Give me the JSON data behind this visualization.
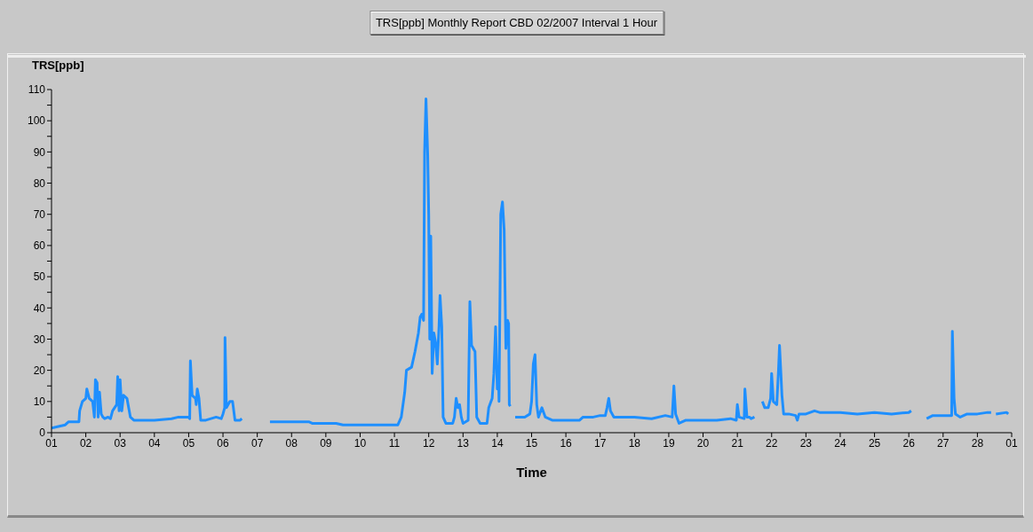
{
  "chart_data": {
    "type": "line",
    "title": "TRS[ppb] Monthly Report CBD 02/2007 Interval 1 Hour",
    "ylabel": "TRS[ppb]",
    "xlabel": "Time",
    "color": "#1e8fff",
    "marker": "none",
    "grid": false,
    "xlim": [
      "2007-02-01",
      "2007-03-01"
    ],
    "xticks": [
      {
        "value": "2007-02-01",
        "label": "01"
      },
      {
        "value": "2007-02-02",
        "label": "02"
      },
      {
        "value": "2007-02-03",
        "label": "03"
      },
      {
        "value": "2007-02-04",
        "label": "04"
      },
      {
        "value": "2007-02-05",
        "label": "05"
      },
      {
        "value": "2007-02-06",
        "label": "06"
      },
      {
        "value": "2007-02-07",
        "label": "07"
      },
      {
        "value": "2007-02-08",
        "label": "08"
      },
      {
        "value": "2007-02-09",
        "label": "09"
      },
      {
        "value": "2007-02-10",
        "label": "10"
      },
      {
        "value": "2007-02-11",
        "label": "11"
      },
      {
        "value": "2007-02-12",
        "label": "12"
      },
      {
        "value": "2007-02-13",
        "label": "13"
      },
      {
        "value": "2007-02-14",
        "label": "14"
      },
      {
        "value": "2007-02-15",
        "label": "15"
      },
      {
        "value": "2007-02-16",
        "label": "16"
      },
      {
        "value": "2007-02-17",
        "label": "17"
      },
      {
        "value": "2007-02-18",
        "label": "18"
      },
      {
        "value": "2007-02-19",
        "label": "19"
      },
      {
        "value": "2007-02-20",
        "label": "20"
      },
      {
        "value": "2007-02-21",
        "label": "21"
      },
      {
        "value": "2007-02-22",
        "label": "22"
      },
      {
        "value": "2007-02-23",
        "label": "23"
      },
      {
        "value": "2007-02-24",
        "label": "24"
      },
      {
        "value": "2007-02-25",
        "label": "25"
      },
      {
        "value": "2007-02-26",
        "label": "26"
      },
      {
        "value": "2007-02-27",
        "label": "27"
      },
      {
        "value": "2007-02-28",
        "label": "28"
      },
      {
        "value": "2007-03-01",
        "label": "01"
      }
    ],
    "ylim": [
      0,
      110
    ],
    "yticks": [
      0,
      {
        "value": 5,
        "label": null
      },
      10,
      {
        "value": 15,
        "label": null
      },
      20,
      {
        "value": 25,
        "label": null
      },
      30,
      {
        "value": 35,
        "label": null
      },
      40,
      {
        "value": 45,
        "label": null
      },
      50,
      {
        "value": 55,
        "label": null
      },
      60,
      {
        "value": 65,
        "label": null
      },
      70,
      {
        "value": 75,
        "label": null
      },
      80,
      {
        "value": 85,
        "label": null
      },
      90,
      {
        "value": 95,
        "label": null
      },
      100,
      {
        "value": 105,
        "label": null
      },
      110
    ],
    "x": [
      "2007-02-01T00:00",
      "2007-02-01T04:48",
      "2007-02-01T09:36",
      "2007-02-01T12:00",
      "2007-02-01T19:12",
      "2007-02-01T19:41",
      "2007-02-01T21:36",
      "2007-02-02T00:00",
      "2007-02-02T00:43",
      "2007-02-02T02:24",
      "2007-02-02T04:48",
      "2007-02-02T06:00",
      "2007-02-02T06:43",
      "2007-02-02T07:55",
      "2007-02-02T08:38",
      "2007-02-02T09:36",
      "2007-02-02T10:48",
      "2007-02-02T12:00",
      "2007-02-02T13:12",
      "2007-02-02T15:36",
      "2007-02-02T17:17",
      "2007-02-02T18:43",
      "2007-02-02T21:36",
      "2007-02-02T22:19",
      "2007-02-02T23:17",
      "2007-02-03T00:00",
      "2007-02-03T01:12",
      "2007-02-03T02:24",
      "2007-02-03T04:48",
      "2007-02-03T07:12",
      "2007-02-03T09:36",
      "2007-02-03T14:24",
      "2007-02-04T00:00",
      "2007-02-04T12:00",
      "2007-02-04T16:48",
      "2007-02-05T00:00",
      "2007-02-05T00:43",
      "2007-02-05T01:12",
      "2007-02-05T02:24",
      "2007-02-05T04:48",
      "2007-02-05T05:17",
      "2007-02-05T06:00",
      "2007-02-05T07:12",
      "2007-02-05T08:24",
      "2007-02-05T12:00",
      "2007-02-05T19:12",
      "2007-02-05T22:48",
      "2007-02-06T00:00",
      "2007-02-06T01:12",
      "2007-02-06T01:26",
      "2007-02-06T02:24",
      "2007-02-06T04:48",
      "2007-02-06T06:43",
      "2007-02-06T08:24",
      "2007-02-06T12:00",
      "2007-02-06T13:12",
      "2007-02-06T21:36",
      "2007-02-07T08:53",
      "2007-02-07T12:00",
      "2007-02-08T00:00",
      "2007-02-08T12:00",
      "2007-02-08T14:24",
      "2007-02-09T00:00",
      "2007-02-09T07:12",
      "2007-02-09T12:00",
      "2007-02-10T00:00",
      "2007-02-10T12:00",
      "2007-02-11T00:00",
      "2007-02-11T02:24",
      "2007-02-11T04:48",
      "2007-02-11T07:12",
      "2007-02-11T08:24",
      "2007-02-11T12:00",
      "2007-02-11T14:24",
      "2007-02-11T16:48",
      "2007-02-11T18:00",
      "2007-02-11T19:12",
      "2007-02-11T20:24",
      "2007-02-11T21:07",
      "2007-02-11T22:05",
      "2007-02-11T23:17",
      "2007-02-12T00:00",
      "2007-02-12T00:43",
      "2007-02-12T01:26",
      "2007-02-12T02:24",
      "2007-02-12T03:36",
      "2007-02-12T04:48",
      "2007-02-12T06:00",
      "2007-02-12T07:12",
      "2007-02-12T07:55",
      "2007-02-12T09:07",
      "2007-02-12T10:05",
      "2007-02-12T12:00",
      "2007-02-12T16:48",
      "2007-02-12T18:00",
      "2007-02-12T19:12",
      "2007-02-12T20:24",
      "2007-02-12T21:36",
      "2007-02-12T22:48",
      "2007-02-13T00:00",
      "2007-02-13T03:36",
      "2007-02-13T04:48",
      "2007-02-13T06:00",
      "2007-02-13T08:24",
      "2007-02-13T09:36",
      "2007-02-13T12:00",
      "2007-02-13T16:48",
      "2007-02-13T18:00",
      "2007-02-13T20:24",
      "2007-02-13T21:36",
      "2007-02-13T22:48",
      "2007-02-14T00:00",
      "2007-02-14T00:43",
      "2007-02-14T01:12",
      "2007-02-14T02:24",
      "2007-02-14T03:36",
      "2007-02-14T04:48",
      "2007-02-14T06:00",
      "2007-02-14T07:12",
      "2007-02-14T07:55",
      "2007-02-14T08:24",
      "2007-02-14T09:07",
      "2007-02-14T10:48",
      "2007-02-14T12:29",
      "2007-02-14T19:12",
      "2007-02-14T22:48",
      "2007-02-15T00:00",
      "2007-02-15T01:12",
      "2007-02-15T02:24",
      "2007-02-15T03:36",
      "2007-02-15T04:48",
      "2007-02-15T07:12",
      "2007-02-15T09:36",
      "2007-02-15T14:24",
      "2007-02-16T00:00",
      "2007-02-16T09:36",
      "2007-02-16T12:00",
      "2007-02-16T19:12",
      "2007-02-17T00:00",
      "2007-02-17T03:36",
      "2007-02-17T04:48",
      "2007-02-17T06:00",
      "2007-02-17T07:12",
      "2007-02-17T09:36",
      "2007-02-18T00:00",
      "2007-02-18T12:00",
      "2007-02-18T21:36",
      "2007-02-19T02:24",
      "2007-02-19T03:36",
      "2007-02-19T04:48",
      "2007-02-19T07:12",
      "2007-02-19T12:00",
      "2007-02-20T00:00",
      "2007-02-20T09:36",
      "2007-02-20T19:12",
      "2007-02-20T23:17",
      "2007-02-21T00:00",
      "2007-02-21T01:12",
      "2007-02-21T04:48",
      "2007-02-21T05:17",
      "2007-02-21T06:43",
      "2007-02-21T08:24",
      "2007-02-21T09:36",
      "2007-02-21T12:00",
      "2007-02-21T14:24",
      "2007-02-21T17:31",
      "2007-02-21T19:12",
      "2007-02-21T21:36",
      "2007-02-21T23:17",
      "2007-02-22T00:00",
      "2007-02-22T01:12",
      "2007-02-22T03:36",
      "2007-02-22T04:48",
      "2007-02-22T05:31",
      "2007-02-22T06:29",
      "2007-02-22T07:12",
      "2007-02-22T08:24",
      "2007-02-22T12:00",
      "2007-02-22T16:48",
      "2007-02-22T18:00",
      "2007-02-22T19:12",
      "2007-02-23T00:00",
      "2007-02-23T06:00",
      "2007-02-23T09:36",
      "2007-02-24T00:00",
      "2007-02-24T12:00",
      "2007-02-25T00:00",
      "2007-02-25T12:00",
      "2007-02-26T00:00",
      "2007-02-26T01:41",
      "2007-02-26T07:12",
      "2007-02-26T12:29",
      "2007-02-26T16:48",
      "2007-02-27T00:00",
      "2007-02-27T06:00",
      "2007-02-27T06:29",
      "2007-02-27T07:41",
      "2007-02-27T08:38",
      "2007-02-27T12:00",
      "2007-02-27T16:48",
      "2007-02-28T00:00",
      "2007-02-28T07:12",
      "2007-02-28T09:36",
      "2007-02-28T10:48",
      "2007-02-28T12:58",
      "2007-02-28T20:24",
      "2007-02-28T21:36"
    ],
    "values": [
      1.5,
      2,
      2.5,
      3.5,
      3.5,
      7,
      10,
      11,
      14,
      11,
      10,
      5,
      17,
      16,
      5,
      13,
      6,
      5,
      4.5,
      5,
      4.5,
      7,
      9,
      18,
      7,
      17,
      7,
      12,
      11,
      5,
      4,
      4,
      4,
      4.5,
      5,
      5,
      4.5,
      23,
      12,
      11,
      9,
      14,
      11,
      4,
      4,
      5,
      4.5,
      6,
      8,
      30.5,
      8,
      10,
      10,
      4,
      4,
      4.5,
      null,
      3.5,
      3.5,
      3.5,
      3.5,
      3,
      3,
      3,
      2.5,
      2.5,
      2.5,
      2.5,
      2.5,
      5,
      13,
      20,
      21,
      26,
      32,
      37,
      38,
      36,
      90,
      107,
      89,
      70,
      30,
      63,
      19,
      32,
      29,
      22,
      34,
      44,
      34,
      5,
      3,
      3,
      5,
      11,
      8,
      9,
      5,
      3,
      4,
      42,
      28,
      26,
      5,
      3,
      3,
      8,
      11,
      19,
      34,
      14,
      21,
      10,
      70,
      74,
      65,
      27,
      36,
      35,
      9,
      8.5,
      null,
      5,
      5,
      6,
      10,
      22,
      25,
      9,
      5,
      8,
      5,
      4,
      4,
      4,
      5,
      5,
      5.5,
      5.5,
      8,
      11,
      7,
      5,
      5,
      4.5,
      5.5,
      5,
      15,
      6,
      3,
      4,
      4,
      4,
      4.5,
      4,
      9,
      5,
      4.5,
      14,
      5,
      5,
      4.5,
      5,
      null,
      10,
      8,
      8,
      11,
      19,
      10,
      9,
      20,
      28,
      19,
      12,
      6,
      6,
      5.5,
      4,
      6,
      6,
      7,
      6.5,
      6.5,
      6,
      6.5,
      6,
      6.5,
      7,
      null,
      4.5,
      5.5,
      5.5,
      5.5,
      32.5,
      11,
      6,
      5,
      6,
      6,
      6.5,
      6.5,
      null,
      6,
      6.5,
      6
    ]
  }
}
